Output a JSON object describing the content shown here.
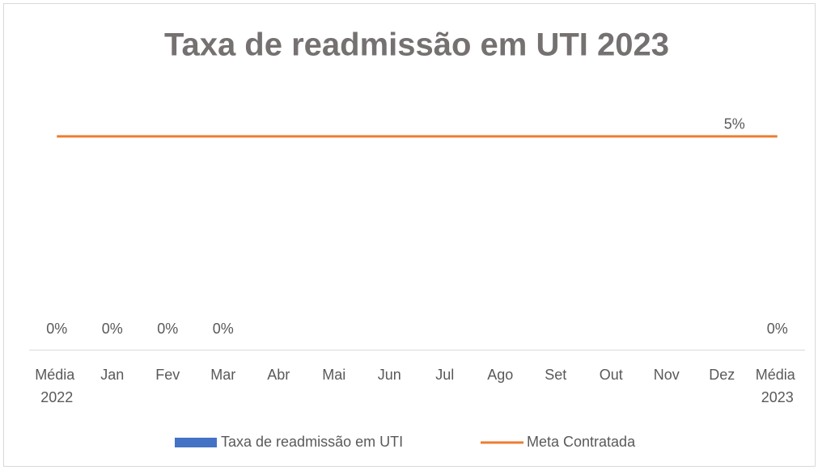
{
  "chart_data": {
    "type": "bar-line",
    "title": "Taxa de readmissão em UTI 2023",
    "categories": [
      "Média 2022",
      "Jan",
      "Fev",
      "Mar",
      "Abr",
      "Mai",
      "Jun",
      "Jul",
      "Ago",
      "Set",
      "Out",
      "Nov",
      "Dez",
      "Média 2023"
    ],
    "series": [
      {
        "name": "Taxa de readmissão em UTI",
        "type": "bar",
        "color": "#4472c4",
        "values": [
          0,
          0,
          0,
          0,
          null,
          null,
          null,
          null,
          null,
          null,
          null,
          null,
          null,
          0
        ],
        "value_labels": [
          "0%",
          "0%",
          "0%",
          "0%",
          null,
          null,
          null,
          null,
          null,
          null,
          null,
          null,
          null,
          "0%"
        ]
      },
      {
        "name": "Meta Contratada",
        "type": "line",
        "color": "#ed7d31",
        "values": [
          5,
          5,
          5,
          5,
          5,
          5,
          5,
          5,
          5,
          5,
          5,
          5,
          5,
          5
        ],
        "value_labels": [
          null,
          null,
          null,
          null,
          null,
          null,
          null,
          null,
          null,
          null,
          null,
          null,
          null,
          "5%"
        ]
      }
    ],
    "ylim": [
      0,
      6
    ],
    "legend": "bottom"
  }
}
